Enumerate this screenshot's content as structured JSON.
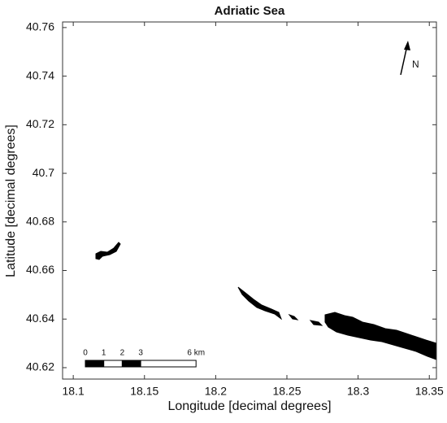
{
  "chart_data": {
    "type": "map",
    "title": "Adriatic Sea",
    "xlabel": "Longitude [decimal degrees]",
    "ylabel": "Latitude [decimal degrees]",
    "xlim": [
      18.0925,
      18.355
    ],
    "ylim": [
      40.6153,
      40.7623
    ],
    "xticks": [
      18.1,
      18.15,
      18.2,
      18.25,
      18.3,
      18.35
    ],
    "yticks": [
      40.62,
      40.64,
      40.66,
      40.68,
      40.7,
      40.72,
      40.74,
      40.76
    ],
    "north_label": "N",
    "scale_bar": [
      {
        "value": 0,
        "label": "0"
      },
      {
        "value": 1,
        "label": "1"
      },
      {
        "value": 2,
        "label": "2"
      },
      {
        "value": 3,
        "label": "3"
      },
      {
        "value": 6,
        "label": "6 km"
      }
    ]
  }
}
